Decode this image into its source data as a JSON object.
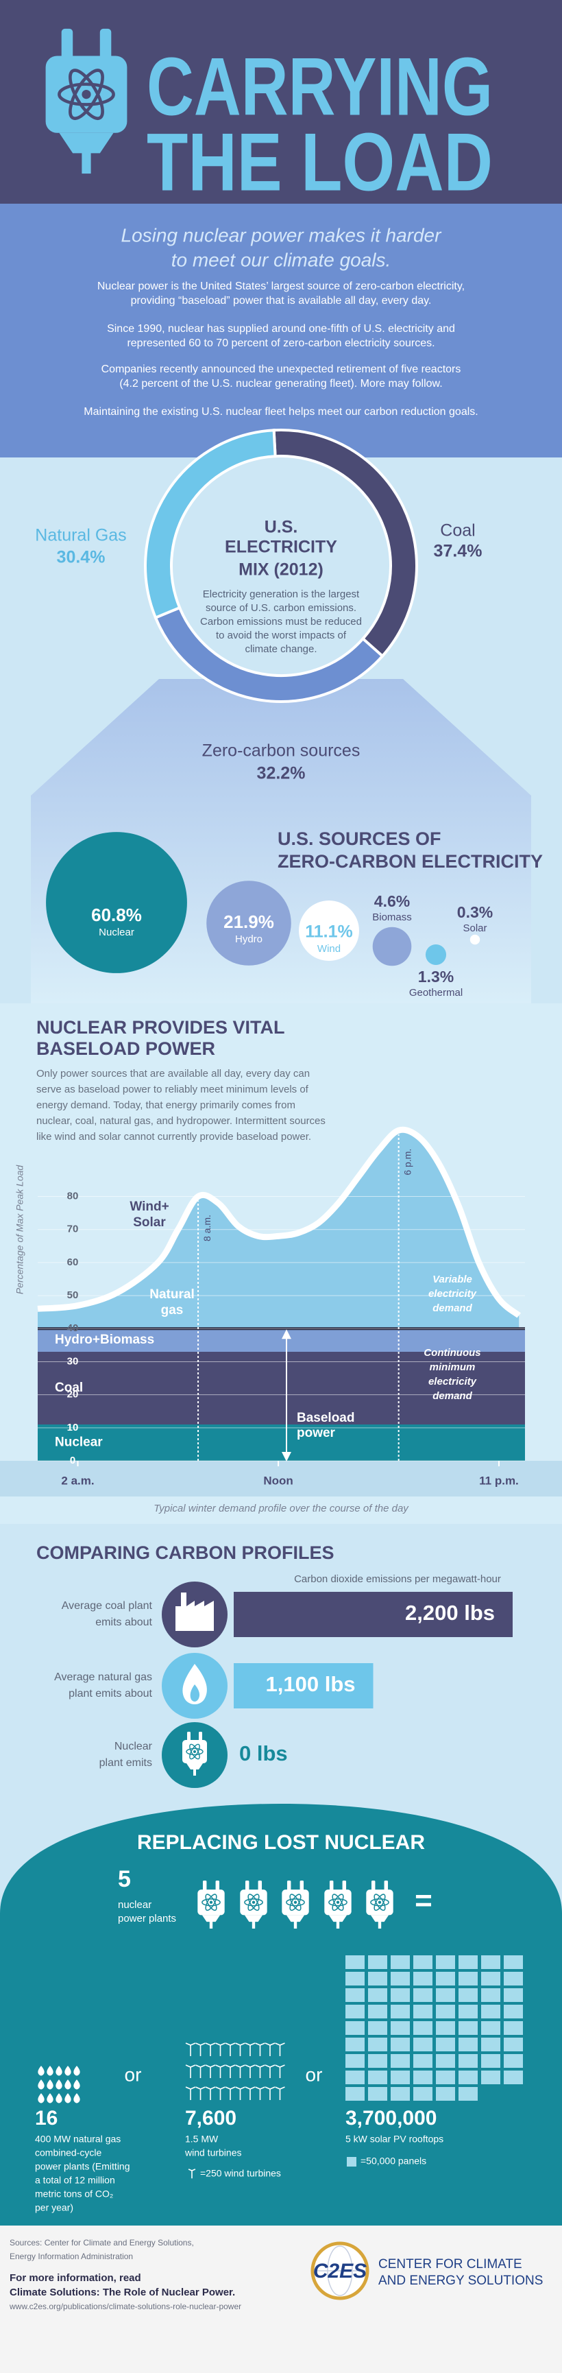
{
  "header": {
    "title_lines": [
      "CARRYING",
      "THE LOAD"
    ]
  },
  "intro": {
    "subtitle_lines": [
      "Losing nuclear power makes it harder",
      "to meet our climate goals."
    ],
    "paragraphs": [
      [
        "Nuclear power is the United States’ largest source of zero-carbon electricity,",
        "providing “baseload” power that is available all day, every day."
      ],
      [
        "Since 1990, nuclear has supplied around one-fifth of U.S. electricity and",
        "represented 60 to 70 percent of zero-carbon electricity sources."
      ],
      [
        "Companies recently announced the unexpected retirement of five reactors",
        "(4.2 percent of the U.S. nuclear generating fleet). More may follow."
      ],
      [
        "Maintaining the existing U.S. nuclear fleet helps meet our carbon reduction goals."
      ]
    ]
  },
  "chart_data": [
    {
      "type": "donut",
      "title_lines": [
        "U.S.",
        "ELECTRICITY",
        "MIX (2012)"
      ],
      "description_lines": [
        "Electricity generation is the largest",
        "source of U.S. carbon emissions.",
        "Carbon emissions must be reduced",
        "to avoid the worst impacts of",
        "climate change."
      ],
      "categories": [
        "Coal",
        "Zero-carbon sources",
        "Natural Gas"
      ],
      "values": [
        37.4,
        32.2,
        30.4
      ],
      "value_labels": [
        "37.4%",
        "32.2%",
        "30.4%"
      ],
      "colors": [
        "#4b4b74",
        "#6d8fd1",
        "#6ec6ea"
      ]
    },
    {
      "type": "bubble",
      "title_lines": [
        "U.S. SOURCES OF",
        "ZERO-CARBON ELECTRICITY"
      ],
      "categories": [
        "Nuclear",
        "Hydro",
        "Wind",
        "Biomass",
        "Solar",
        "Geothermal"
      ],
      "values": [
        60.8,
        21.9,
        11.1,
        4.6,
        0.3,
        1.3
      ],
      "value_labels": [
        "60.8%",
        "21.9%",
        "11.1%",
        "4.6%",
        "0.3%",
        "1.3%"
      ],
      "colors": [
        "#16899a",
        "#8ea6d8",
        "#ffffff",
        "#8ea6d8",
        "#ffffff",
        "#6ec6ea"
      ]
    },
    {
      "type": "area",
      "title_lines": [
        "NUCLEAR PROVIDES VITAL",
        "BASELOAD POWER"
      ],
      "description_lines": [
        "Only power sources that are available all day, every day can",
        "serve as baseload power to reliably meet minimum levels of",
        "energy demand. Today, that energy primarily comes from",
        "nuclear, coal, natural gas, and hydropower. Intermittent sources",
        "like wind and solar cannot currently provide baseload power."
      ],
      "y_label": "Percentage of Max Peak Load",
      "xlim": [
        0,
        24.3
      ],
      "ylim": [
        0,
        110
      ],
      "yticks": [
        0,
        10,
        20,
        30,
        40,
        50,
        60,
        70,
        80
      ],
      "xticks": [
        {
          "value": 2,
          "label": "2 a.m."
        },
        {
          "value": 12,
          "label": "Noon"
        },
        {
          "value": 23,
          "label": "11 p.m."
        }
      ],
      "markers": [
        {
          "value": 8,
          "label": "8 a.m."
        },
        {
          "value": 18,
          "label": "6 p.m."
        }
      ],
      "layers": [
        {
          "name": "Nuclear",
          "value": 11,
          "color": "#16899a"
        },
        {
          "name": "Coal",
          "value": 22,
          "color": "#4b4b74"
        },
        {
          "name": "Hydro+Biomass",
          "value": 7,
          "color": "#7f9fd6"
        }
      ],
      "demand": {
        "color": "#8ccbe9",
        "x": [
          0,
          2,
          4,
          6,
          7,
          8,
          9,
          10,
          11,
          12,
          13,
          14,
          15,
          16,
          17,
          18,
          19,
          20,
          21,
          22,
          23,
          24
        ],
        "values": [
          46,
          47,
          51,
          60,
          70,
          80,
          78,
          71,
          68,
          68,
          69,
          72,
          78,
          86,
          94,
          100,
          98,
          90,
          77,
          60,
          49,
          44
        ]
      },
      "area_labels": [
        [
          "Natural",
          "gas"
        ],
        [
          "Wind+",
          "Solar"
        ]
      ],
      "annotations": {
        "baseload": [
          "Baseload",
          "power"
        ],
        "variable": [
          "Variable",
          "electricity",
          "demand"
        ],
        "continuous": [
          "Continuous",
          "minimum",
          "electricity",
          "demand"
        ]
      },
      "caption": "Typical winter demand profile over the course of the day"
    },
    {
      "type": "bar",
      "title": "COMPARING CARBON PROFILES",
      "subtitle": "Carbon dioxide emissions per megawatt-hour",
      "categories": [
        [
          "Average coal plant",
          "emits about"
        ],
        [
          "Average natural gas",
          "plant emits about"
        ],
        [
          "Nuclear",
          "plant emits"
        ]
      ],
      "values": [
        2200,
        1100,
        0
      ],
      "value_labels": [
        "2,200 lbs",
        "1,100 lbs",
        "0 lbs"
      ],
      "colors": [
        "#4b4b74",
        "#6ec6ea",
        "#16899a"
      ]
    }
  ],
  "replacing": {
    "title": "REPLACING LOST NUCLEAR",
    "plants": {
      "number": "5",
      "label_lines": [
        "nuclear",
        "power plants"
      ]
    },
    "equals": "=",
    "or": "or",
    "options": [
      {
        "number": "16",
        "lines": [
          "400 MW natural gas",
          "combined-cycle",
          "power plants (Emitting",
          "a total of 12 million",
          "metric tons of CO₂",
          "per year)"
        ]
      },
      {
        "number": "7,600",
        "lines": [
          "1.5 MW",
          "wind turbines"
        ],
        "key": "=250 wind turbines"
      },
      {
        "number": "3,700,000",
        "lines": [
          "5 kW solar PV rooftops"
        ],
        "key": "=50,000 panels"
      }
    ]
  },
  "footer": {
    "sources_lines": [
      "Sources: Center for Climate and Energy Solutions,",
      "Energy Information Administration"
    ],
    "more_lines": [
      "For more information, read",
      "Climate Solutions: The Role of Nuclear Power."
    ],
    "url": "www.c2es.org/publications/climate-solutions-role-nuclear-power",
    "logo": "C2ES",
    "org_lines": [
      "CENTER FOR CLIMATE",
      "AND ENERGY SOLUTIONS"
    ]
  }
}
